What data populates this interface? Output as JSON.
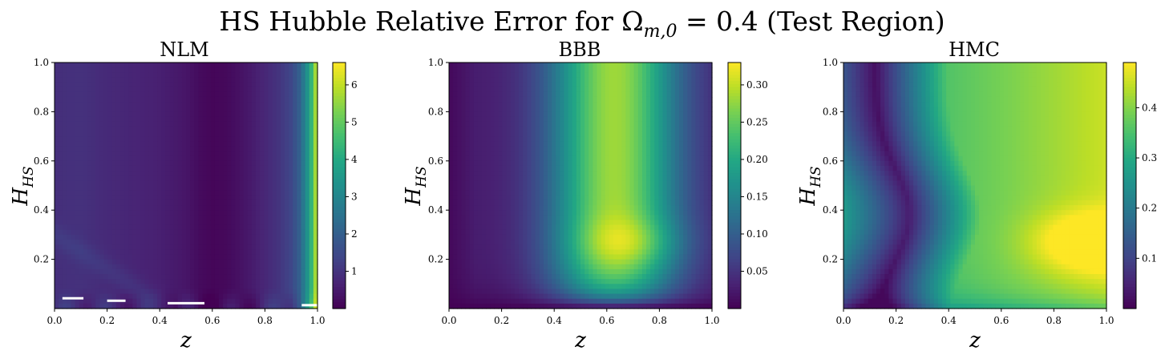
{
  "figure": {
    "suptitle_text": "HS Hubble Relative Error for Ω",
    "suptitle_subscript": "m,0",
    "suptitle_tail": " = 0.4 (Test Region)"
  },
  "chart_data": [
    {
      "type": "heatmap",
      "title": "NLM",
      "xlabel": "z",
      "ylabel_main": "H",
      "ylabel_sub": "HS",
      "xlim": [
        0.0,
        1.0
      ],
      "ylim": [
        0.0,
        1.0
      ],
      "x_ticks": [
        "0.0",
        "0.2",
        "0.4",
        "0.6",
        "0.8",
        "1.0"
      ],
      "y_ticks": [
        "0.2",
        "0.4",
        "0.6",
        "0.8",
        "1.0"
      ],
      "colorbar_range": [
        0.0,
        6.6
      ],
      "colorbar_ticks": [
        "1",
        "2",
        "3",
        "4",
        "5",
        "6"
      ],
      "colorbar_tick_values": [
        1,
        2,
        3,
        4,
        5,
        6
      ],
      "colormap": "viridis",
      "grid": false,
      "profile_z": [
        0.0,
        0.1,
        0.2,
        0.3,
        0.4,
        0.5,
        0.55,
        0.6,
        0.65,
        0.7,
        0.75,
        0.8,
        0.85,
        0.9,
        0.93,
        0.95,
        0.97,
        0.985,
        1.0
      ],
      "profile_value": [
        0.9,
        0.95,
        0.8,
        0.7,
        0.6,
        0.4,
        0.2,
        0.1,
        0.15,
        0.3,
        0.5,
        0.75,
        1.0,
        1.4,
        2.0,
        2.8,
        3.8,
        5.0,
        6.4
      ]
    },
    {
      "type": "heatmap",
      "title": "BBB",
      "xlabel": "z",
      "ylabel_main": "H",
      "ylabel_sub": "HS",
      "xlim": [
        0.0,
        1.0
      ],
      "ylim": [
        0.0,
        1.0
      ],
      "x_ticks": [
        "0.0",
        "0.2",
        "0.4",
        "0.6",
        "0.8",
        "1.0"
      ],
      "y_ticks": [
        "0.2",
        "0.4",
        "0.6",
        "0.8",
        "1.0"
      ],
      "colorbar_range": [
        0.0,
        0.33
      ],
      "colorbar_ticks": [
        "0.05",
        "0.10",
        "0.15",
        "0.20",
        "0.25",
        "0.30"
      ],
      "colorbar_tick_values": [
        0.05,
        0.1,
        0.15,
        0.2,
        0.25,
        0.3
      ],
      "colormap": "viridis",
      "grid": false,
      "peak_value_approx": 0.33,
      "peak_location": [
        0.7,
        0.27
      ]
    },
    {
      "type": "heatmap",
      "title": "HMC",
      "xlabel": "z",
      "ylabel_main": "H",
      "ylabel_sub": "HS",
      "xlim": [
        0.0,
        1.0
      ],
      "ylim": [
        0.0,
        1.0
      ],
      "x_ticks": [
        "0.0",
        "0.2",
        "0.4",
        "0.6",
        "0.8",
        "1.0"
      ],
      "y_ticks": [
        "0.2",
        "0.4",
        "0.6",
        "0.8",
        "1.0"
      ],
      "colorbar_range": [
        0.0,
        0.49
      ],
      "colorbar_ticks": [
        "0.1",
        "0.2",
        "0.3",
        "0.4"
      ],
      "colorbar_tick_values": [
        0.1,
        0.2,
        0.3,
        0.4
      ],
      "colormap": "viridis",
      "grid": false,
      "peak_value_approx": 0.48,
      "peak_location": [
        0.95,
        0.27
      ]
    }
  ]
}
